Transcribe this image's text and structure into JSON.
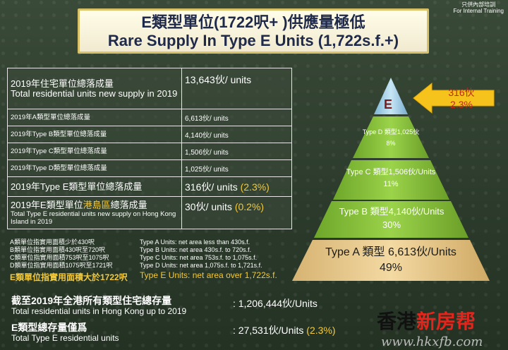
{
  "note": {
    "line1": "只供內部培訓",
    "line2": "For Internal Training"
  },
  "title": {
    "zh": "E類型單位(1722呎+ )供應量極低",
    "en": "Rare Supply In Type E Units (1,722s.f.+)"
  },
  "table": {
    "r1": {
      "zh": "2019年住宅單位總落成量",
      "en": "Total residential units new supply in 2019",
      "value": "13,643伙/ units"
    },
    "r2": {
      "label": "2019年A類型單位總落成量",
      "value": "6,613伙/ units"
    },
    "r3": {
      "label": "2019年Type B類型單位總落成量",
      "value": "4,140伙/ units"
    },
    "r4": {
      "label": "2019年Type C類型單位總落成量",
      "value": "1,506伙/ units"
    },
    "r5": {
      "label": "2019年Type D類型單位總落成量",
      "value": "1,025伙/ units"
    },
    "r6": {
      "label": "2019年Type E類型單位總落成量",
      "value": "316伙/ units",
      "pct": "(2.3%)"
    },
    "r7": {
      "zh_a": "2019年E類型單位",
      "zh_b": "港島區",
      "zh_c": "總落成量",
      "en": "Total Type E residential units new supply on Hong Kong Island in 2019",
      "value": "30伙/ units",
      "pct": "(0.2%)"
    }
  },
  "defs_left": [
    "A類單位指實用面積少於430呎",
    "B類單位指實用面積430呎至720呎",
    "C類單位指實用面積753呎至1075呎",
    "D類單位指實用面積1075呎至1721呎"
  ],
  "defs_left_e": "E類單位指實用面積大於1722呎",
  "defs_right": [
    "Type A Units: net area less than 430s.f.",
    "Type B Units: net area 430s.f. to 720s.f.",
    "Type C Units: net area 753s.f. to 1,075s.f.",
    "Type D Units: net area 1,075s.f. to 1,721s.f."
  ],
  "defs_right_e": "Type E Units: net area over 1,722s.f.",
  "bottom": {
    "l1_zh": "截至2019年全港所有類型住宅總存量",
    "l1_en": "Total residential units in Hong Kong up to 2019",
    "l1_val": ": 1,206,444伙/Units",
    "l2_zh": "E類型總存量僅爲",
    "l2_en": "Total Type E residential units",
    "l2_val": ": 27,531伙/Units",
    "l2_pct": "(2.3%)"
  },
  "pyramid": {
    "e": "E",
    "d_label": "Type D 類型1,025伙",
    "d_pct": "8%",
    "c_label": "Type C 類型1,506伙/Units",
    "c_pct": "11%",
    "b_label": "Type B 類型4,140伙/Units",
    "b_pct": "30%",
    "a_label": "Type A 類型 6,613伙/Units",
    "a_pct": "49%",
    "callout_units": "316伙",
    "callout_pct": "2.3%"
  },
  "logo": {
    "black": "香港",
    "red": "新房帮"
  },
  "watermark": "www.hkxfb.com",
  "colors": {
    "gold": "#f3c93a",
    "navy": "#1f2a4a",
    "green_layer": "#8dc43a",
    "tan_layer": "#e9c98c"
  }
}
